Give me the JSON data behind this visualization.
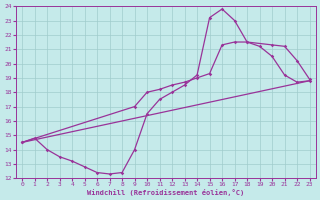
{
  "xlabel": "Windchill (Refroidissement éolien,°C)",
  "xlim": [
    -0.5,
    23.5
  ],
  "ylim": [
    12,
    24
  ],
  "xticks": [
    0,
    1,
    2,
    3,
    4,
    5,
    6,
    7,
    8,
    9,
    10,
    11,
    12,
    13,
    14,
    15,
    16,
    17,
    18,
    19,
    20,
    21,
    22,
    23
  ],
  "yticks": [
    12,
    13,
    14,
    15,
    16,
    17,
    18,
    19,
    20,
    21,
    22,
    23,
    24
  ],
  "bg_color": "#c5eaea",
  "line_color": "#993399",
  "grid_color": "#a0cccc",
  "line1_x": [
    0,
    1,
    2,
    3,
    4,
    5,
    6,
    7,
    8,
    9,
    10,
    11,
    12,
    13,
    14,
    15,
    16,
    17,
    18,
    19,
    20,
    21,
    22,
    23
  ],
  "line1_y": [
    14.5,
    14.8,
    14.0,
    13.5,
    13.2,
    12.8,
    12.4,
    12.3,
    12.4,
    14.0,
    16.5,
    17.5,
    18.0,
    18.5,
    19.2,
    23.2,
    23.8,
    23.0,
    21.5,
    21.2,
    20.5,
    19.2,
    18.7,
    18.8
  ],
  "line2_x": [
    0,
    9,
    10,
    11,
    12,
    13,
    14,
    15,
    16,
    17,
    18,
    20,
    21,
    22,
    23
  ],
  "line2_y": [
    14.5,
    17.0,
    18.0,
    18.2,
    18.5,
    18.7,
    19.0,
    19.3,
    21.3,
    21.5,
    21.5,
    21.3,
    21.2,
    20.2,
    18.9
  ],
  "line3_x": [
    0,
    23
  ],
  "line3_y": [
    14.5,
    18.8
  ]
}
